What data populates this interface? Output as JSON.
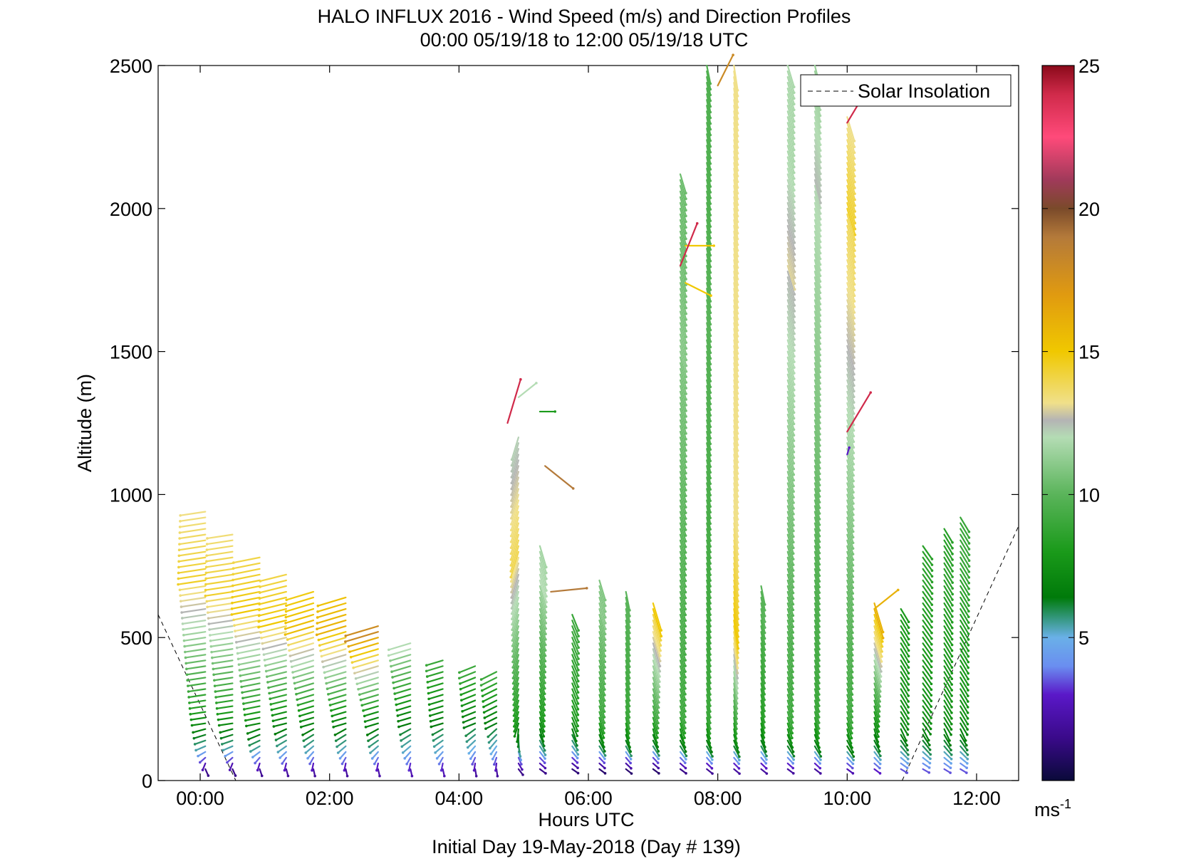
{
  "chart_data": {
    "type": "quiver",
    "title": "HALO INFLUX 2016 - Wind Speed (m/s) and Direction Profiles",
    "subtitle": "00:00 05/19/18 to 12:00 05/19/18  UTC",
    "xlabel": "Hours UTC",
    "xlabel2": "Initial Day 19-May-2018 (Day # 139)",
    "ylabel": "Altitude (m)",
    "xlim_hours": [
      -0.65,
      12.65
    ],
    "ylim": [
      0,
      2500
    ],
    "xticks": [
      {
        "v": 0,
        "label": "00:00"
      },
      {
        "v": 2,
        "label": "02:00"
      },
      {
        "v": 4,
        "label": "04:00"
      },
      {
        "v": 6,
        "label": "06:00"
      },
      {
        "v": 8,
        "label": "08:00"
      },
      {
        "v": 10,
        "label": "10:00"
      },
      {
        "v": 12,
        "label": "12:00"
      }
    ],
    "yticks": [
      {
        "v": 0,
        "label": "0"
      },
      {
        "v": 500,
        "label": "500"
      },
      {
        "v": 1000,
        "label": "1000"
      },
      {
        "v": 1500,
        "label": "1500"
      },
      {
        "v": 2000,
        "label": "2000"
      },
      {
        "v": 2500,
        "label": "2500"
      }
    ],
    "legend": {
      "label": "Solar Insolation",
      "placement": "top-right",
      "style": "dashed"
    },
    "colorbar": {
      "range": [
        0,
        25
      ],
      "ticks": [
        {
          "v": 5,
          "label": "5"
        },
        {
          "v": 10,
          "label": "10"
        },
        {
          "v": 15,
          "label": "15"
        },
        {
          "v": 20,
          "label": "20"
        },
        {
          "v": 25,
          "label": "25"
        }
      ],
      "unit_label": "ms",
      "unit_exponent": "-1",
      "stops": [
        {
          "v": 0,
          "c": "#0a0a3a"
        },
        {
          "v": 1.5,
          "c": "#3a0a8a"
        },
        {
          "v": 3,
          "c": "#5a18c8"
        },
        {
          "v": 4,
          "c": "#6a8ef0"
        },
        {
          "v": 5,
          "c": "#6ab0e8"
        },
        {
          "v": 5.6,
          "c": "#3a9a8a"
        },
        {
          "v": 6.4,
          "c": "#007a0a"
        },
        {
          "v": 8,
          "c": "#1a9a1a"
        },
        {
          "v": 10,
          "c": "#5ab45a"
        },
        {
          "v": 12,
          "c": "#b4dcb4"
        },
        {
          "v": 12.6,
          "c": "#b4b4b4"
        },
        {
          "v": 13.2,
          "c": "#f0e08a"
        },
        {
          "v": 15,
          "c": "#f0c800"
        },
        {
          "v": 17,
          "c": "#e09a10"
        },
        {
          "v": 19,
          "c": "#b47a3a"
        },
        {
          "v": 20,
          "c": "#7a4a2a"
        },
        {
          "v": 21,
          "c": "#a03a5a"
        },
        {
          "v": 22.5,
          "c": "#ff4a7a"
        },
        {
          "v": 24,
          "c": "#d02a4a"
        },
        {
          "v": 25,
          "c": "#8a0a1a"
        }
      ]
    },
    "solar_insolation": [
      {
        "x": -0.65,
        "y": 580
      },
      {
        "x": 0.55,
        "y": 0
      },
      {
        "x": 10.85,
        "y": 0
      },
      {
        "x": 12.65,
        "y": 890
      }
    ],
    "vector_glyph_scale_m_per_s": 45,
    "profiles": [
      {
        "t": 0.08,
        "top": 955,
        "low": 1.5,
        "mid": 8,
        "peak": 14.5,
        "peak_at": 700,
        "u": -1.0,
        "v": -0.15
      },
      {
        "t": 0.5,
        "top": 860,
        "low": 1.5,
        "mid": 8,
        "peak": 14.5,
        "peak_at": 650,
        "u": -1.0,
        "v": -0.15
      },
      {
        "t": 0.92,
        "top": 780,
        "low": 1.8,
        "mid": 8,
        "peak": 15,
        "peak_at": 600,
        "u": -1.0,
        "v": -0.2
      },
      {
        "t": 1.33,
        "top": 720,
        "low": 2,
        "mid": 7.5,
        "peak": 15,
        "peak_at": 560,
        "u": -1.0,
        "v": -0.25
      },
      {
        "t": 1.75,
        "top": 660,
        "low": 2,
        "mid": 7.5,
        "peak": 15.5,
        "peak_at": 540,
        "u": -1.0,
        "v": -0.3
      },
      {
        "t": 2.25,
        "top": 655,
        "low": 2,
        "mid": 7.5,
        "peak": 16,
        "peak_at": 530,
        "u": -1.0,
        "v": -0.3
      },
      {
        "t": 2.75,
        "top": 555,
        "low": 2.2,
        "mid": 7.5,
        "peak": 18,
        "peak_at": 520,
        "u": -1.0,
        "v": -0.3
      },
      {
        "t": 3.25,
        "top": 480,
        "low": 2.5,
        "mid": 7,
        "peak": 12,
        "peak_at": 460,
        "u": -1.0,
        "v": -0.3
      },
      {
        "t": 3.75,
        "top": 420,
        "low": 2.5,
        "mid": 7,
        "peak": 9,
        "peak_at": 400,
        "u": -1.0,
        "v": -0.3
      },
      {
        "t": 4.25,
        "top": 400,
        "low": 2,
        "mid": 7,
        "peak": 9,
        "peak_at": 380,
        "u": -1.0,
        "v": -0.4
      },
      {
        "t": 4.58,
        "top": 380,
        "low": 2,
        "mid": 7,
        "peak": 9,
        "peak_at": 360,
        "u": -1.0,
        "v": -0.5
      },
      {
        "t": 4.92,
        "top": 1200,
        "low": 1.5,
        "mid": 8,
        "peak": 14,
        "peak_at": 800,
        "u": -0.3,
        "v": -1.0
      },
      {
        "t": 5.25,
        "top": 820,
        "low": 1.5,
        "mid": 8,
        "peak": 12,
        "peak_at": 700,
        "u": 0.3,
        "v": -1.0
      },
      {
        "t": 5.75,
        "top": 590,
        "low": 1.2,
        "mid": 8,
        "peak": 9,
        "peak_at": 500,
        "u": 0.4,
        "v": -1.0
      },
      {
        "t": 6.17,
        "top": 700,
        "low": 1.0,
        "mid": 9,
        "peak": 11,
        "peak_at": 600,
        "u": 0.3,
        "v": -1.0
      },
      {
        "t": 6.58,
        "top": 660,
        "low": 1.0,
        "mid": 9,
        "peak": 10,
        "peak_at": 600,
        "u": 0.2,
        "v": -1.0
      },
      {
        "t": 7.0,
        "top": 620,
        "low": 1.0,
        "mid": 9,
        "peak": 15,
        "peak_at": 600,
        "u": 0.3,
        "v": -1.0
      },
      {
        "t": 7.42,
        "top": 2120,
        "low": 1.5,
        "mid": 9,
        "peak": 11,
        "peak_at": 1500,
        "u": 0.3,
        "v": -1.0
      },
      {
        "t": 7.83,
        "top": 2500,
        "low": 1.8,
        "mid": 9,
        "peak": 10,
        "peak_at": 1600,
        "u": 0.2,
        "v": -1.0
      },
      {
        "t": 8.25,
        "top": 2500,
        "low": 2,
        "mid": 9,
        "peak": 15,
        "peak_at": 550,
        "u": 0.15,
        "v": -1.0
      },
      {
        "t": 8.67,
        "top": 680,
        "low": 2,
        "mid": 8.5,
        "peak": 10,
        "peak_at": 600,
        "u": 0.2,
        "v": -1.0
      },
      {
        "t": 9.08,
        "top": 2500,
        "low": 2,
        "mid": 9,
        "peak": 13,
        "peak_at": 1800,
        "u": 0.3,
        "v": -1.0
      },
      {
        "t": 9.5,
        "top": 2500,
        "low": 2,
        "mid": 9,
        "peak": 12.5,
        "peak_at": 2100,
        "u": 0.25,
        "v": -1.0
      },
      {
        "t": 10.0,
        "top": 2330,
        "low": 2.5,
        "mid": 9,
        "peak": 14.5,
        "peak_at": 2000,
        "u": 0.3,
        "v": -1.0
      },
      {
        "t": 10.42,
        "top": 620,
        "low": 3,
        "mid": 8,
        "peak": 16,
        "peak_at": 600,
        "u": 0.3,
        "v": -1.0
      },
      {
        "t": 10.83,
        "top": 600,
        "low": 3.5,
        "mid": 7.5,
        "peak": 8,
        "peak_at": 500,
        "u": 0.6,
        "v": -1.0
      },
      {
        "t": 11.17,
        "top": 830,
        "low": 3.5,
        "mid": 7.5,
        "peak": 8.5,
        "peak_at": 700,
        "u": 0.7,
        "v": -1.0
      },
      {
        "t": 11.5,
        "top": 880,
        "low": 3.5,
        "mid": 7.5,
        "peak": 8.5,
        "peak_at": 700,
        "u": 0.6,
        "v": -1.0
      },
      {
        "t": 11.75,
        "top": 920,
        "low": 3.5,
        "mid": 7.5,
        "peak": 9,
        "peak_at": 800,
        "u": 0.6,
        "v": -1.0
      }
    ],
    "isolated_vectors": [
      {
        "t": 4.75,
        "z": 1250,
        "s": 24,
        "u": 0.3,
        "v": 1.0
      },
      {
        "t": 4.92,
        "z": 1340,
        "s": 12,
        "u": 1.0,
        "v": 0.8
      },
      {
        "t": 5.25,
        "z": 1290,
        "s": 8,
        "u": 1.0,
        "v": 0.0
      },
      {
        "t": 5.33,
        "z": 1100,
        "s": 19,
        "u": 1.0,
        "v": -0.8
      },
      {
        "t": 5.42,
        "z": 660,
        "s": 19,
        "u": 1.0,
        "v": 0.1
      },
      {
        "t": 7.5,
        "z": 1870,
        "s": 15,
        "u": 1.0,
        "v": 0.0
      },
      {
        "t": 7.42,
        "z": 1800,
        "s": 24,
        "u": 0.4,
        "v": 1.0
      },
      {
        "t": 7.5,
        "z": 1740,
        "s": 15,
        "u": 1.0,
        "v": -0.5
      },
      {
        "t": 8.0,
        "z": 2430,
        "s": 18,
        "u": 0.5,
        "v": 1.0
      },
      {
        "t": 10.0,
        "z": 2300,
        "s": 24,
        "u": 0.6,
        "v": 1.0
      },
      {
        "t": 10.0,
        "z": 1220,
        "s": 24,
        "u": 0.6,
        "v": 1.0
      },
      {
        "t": 10.0,
        "z": 1140,
        "s": 3,
        "u": 0.3,
        "v": 1.0
      },
      {
        "t": 10.42,
        "z": 600,
        "s": 16,
        "u": 1.0,
        "v": 0.8
      }
    ]
  }
}
